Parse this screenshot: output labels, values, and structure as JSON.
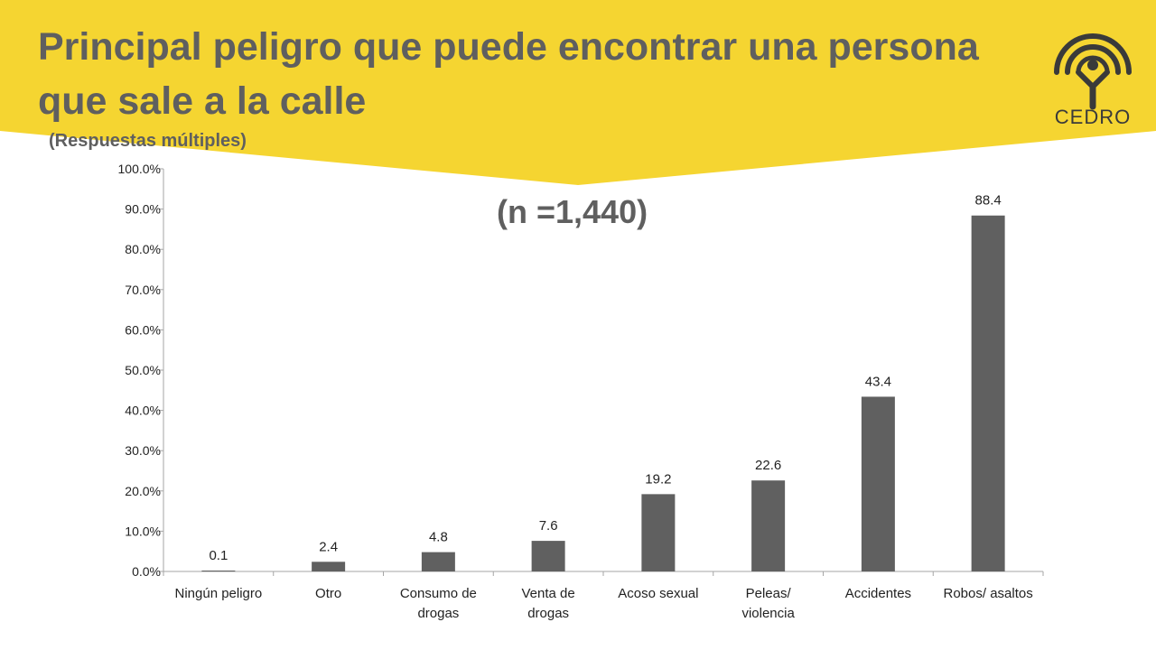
{
  "header": {
    "title": "Principal peligro que puede encontrar una persona que sale a la calle",
    "subtitle": "(Respuestas múltiples)",
    "sample_note": "(n =1,440)",
    "banner_color": "#f5d531",
    "text_color": "#5f5f5f"
  },
  "logo": {
    "text": "CEDRO",
    "icon": "person-under-arches-icon"
  },
  "chart_data": {
    "type": "bar",
    "categories": [
      [
        "Ningún peligro"
      ],
      [
        "Otro"
      ],
      [
        "Consumo de",
        "drogas"
      ],
      [
        "Venta de",
        "drogas"
      ],
      [
        "Acoso sexual"
      ],
      [
        "Peleas/",
        "violencia"
      ],
      [
        "Accidentes"
      ],
      [
        "Robos/ asaltos"
      ]
    ],
    "values": [
      0.1,
      2.4,
      4.8,
      7.6,
      19.2,
      22.6,
      43.4,
      88.4
    ],
    "value_labels": [
      "0.1",
      "2.4",
      "4.8",
      "7.6",
      "19.2",
      "22.6",
      "43.4",
      "88.4"
    ],
    "ylim": [
      0,
      100
    ],
    "yticks": [
      "0.0%",
      "10.0%",
      "20.0%",
      "30.0%",
      "40.0%",
      "50.0%",
      "60.0%",
      "70.0%",
      "80.0%",
      "90.0%",
      "100.0%"
    ],
    "bar_color": "#606060",
    "grid": false
  }
}
